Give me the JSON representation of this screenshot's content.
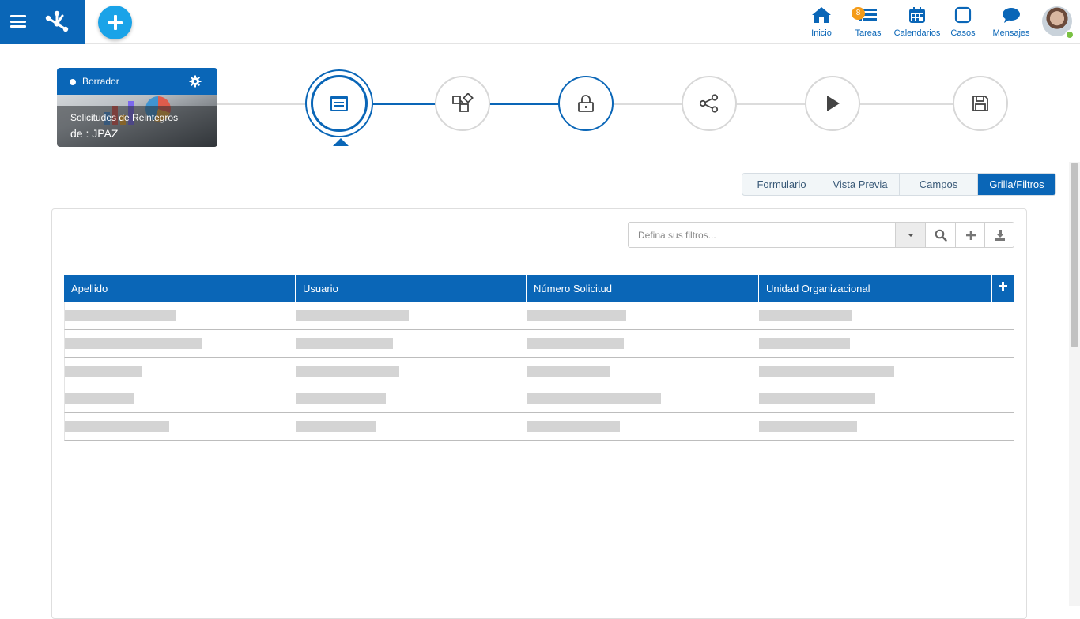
{
  "header": {
    "nav": [
      {
        "label": "Inicio",
        "icon": "home-icon"
      },
      {
        "label": "Tareas",
        "icon": "tasks-icon",
        "badge": "8"
      },
      {
        "label": "Calendarios",
        "icon": "calendar-icon"
      },
      {
        "label": "Casos",
        "icon": "cases-icon"
      },
      {
        "label": "Mensajes",
        "icon": "messages-icon"
      }
    ],
    "accent_color": "#0a66b7",
    "add_button_color": "#1aa3e8",
    "badge_color": "#f49b17",
    "user_status": "online"
  },
  "card": {
    "status": "Borrador",
    "title": "Solicitudes de Reintegros",
    "subtitle": "de : JPAZ"
  },
  "stepper": {
    "steps": [
      {
        "icon": "form-icon",
        "state": "active"
      },
      {
        "icon": "shapes-icon",
        "state": "pending"
      },
      {
        "icon": "lock-icon",
        "state": "done"
      },
      {
        "icon": "share-icon",
        "state": "pending"
      },
      {
        "icon": "play-icon",
        "state": "pending"
      },
      {
        "icon": "save-icon",
        "state": "pending"
      }
    ]
  },
  "tabs": [
    {
      "label": "Formulario",
      "active": false
    },
    {
      "label": "Vista Previa",
      "active": false
    },
    {
      "label": "Campos",
      "active": false
    },
    {
      "label": "Grilla/Filtros",
      "active": true
    }
  ],
  "filter": {
    "placeholder": "Defina sus filtros..."
  },
  "grid": {
    "columns": [
      "Apellido",
      "Usuario",
      "Número Solicitud",
      "Unidad Organizacional"
    ],
    "rows_placeholder_count": 5,
    "header_color": "#0a66b7"
  }
}
